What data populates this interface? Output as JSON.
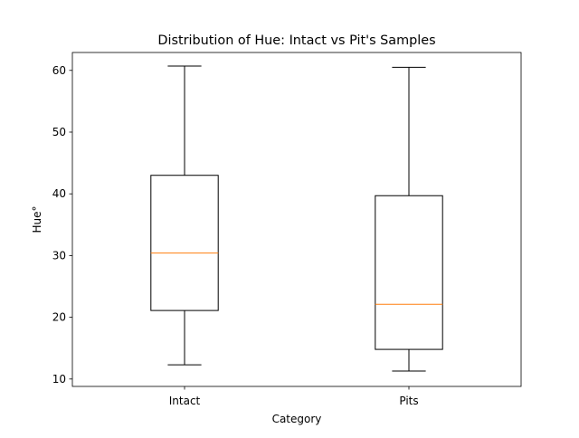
{
  "chart_data": {
    "type": "box",
    "title": "Distribution of Hue: Intact vs Pit's Samples",
    "xlabel": "Category",
    "ylabel": "Hue°",
    "ylim": [
      8.8,
      62.9
    ],
    "yticks": [
      10,
      20,
      30,
      40,
      50,
      60
    ],
    "grid": false,
    "categories": [
      "Intact",
      "Pits"
    ],
    "boxes": [
      {
        "category": "Intact",
        "whisker_low": 12.3,
        "q1": 21.1,
        "median": 30.4,
        "q3": 43.0,
        "whisker_high": 60.7
      },
      {
        "category": "Pits",
        "whisker_low": 11.3,
        "q1": 14.8,
        "median": 22.1,
        "q3": 39.7,
        "whisker_high": 60.5
      }
    ],
    "colors": {
      "box": "#000000",
      "median": "#ff7f0e",
      "axes": "#000000",
      "background": "#ffffff"
    }
  }
}
